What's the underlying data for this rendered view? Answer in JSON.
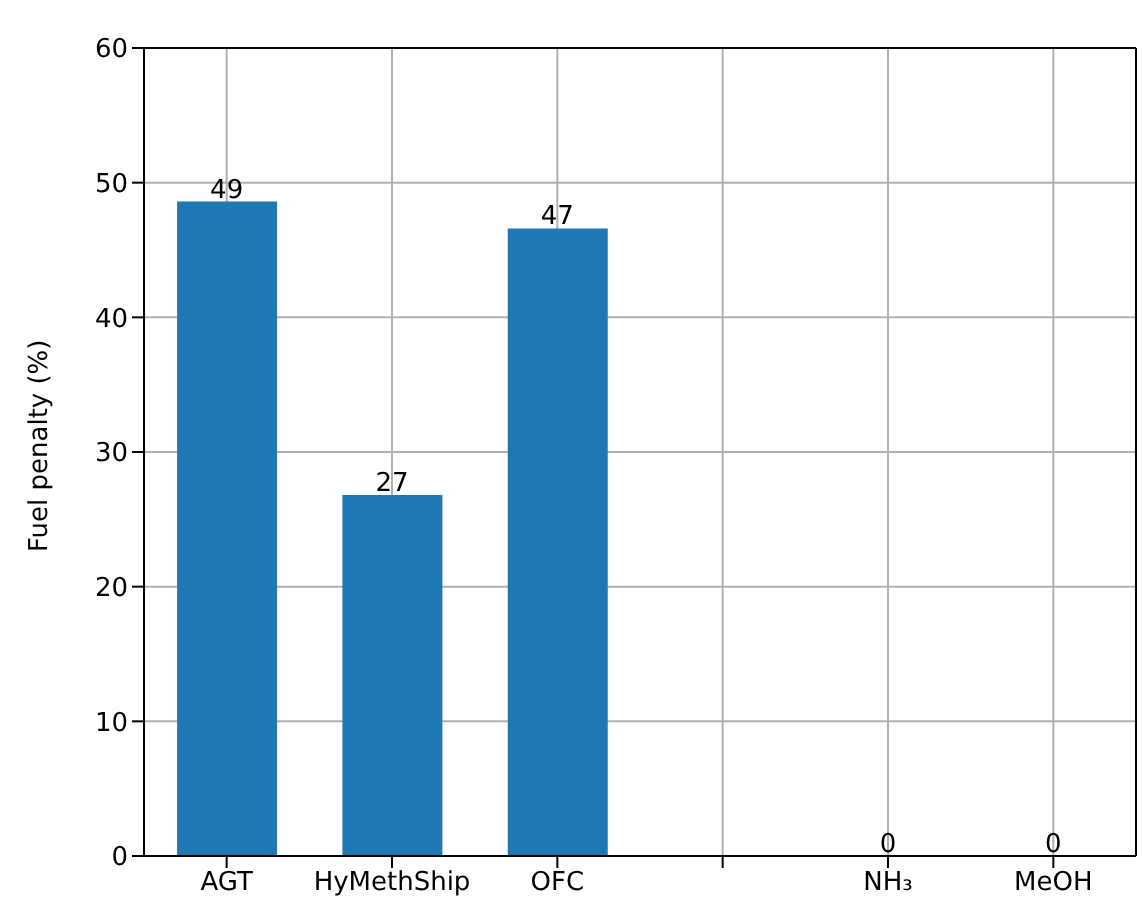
{
  "chart_data": {
    "type": "bar",
    "ylabel": "Fuel penalty (%)",
    "categories": [
      "AGT",
      "HyMethShip",
      "OFC",
      null,
      "NH₃",
      "MeOH"
    ],
    "values": [
      48.6,
      26.8,
      46.6,
      null,
      0,
      0
    ],
    "value_labels": [
      "49",
      "27",
      "47",
      null,
      "0",
      "0"
    ],
    "color": "#1f77b4",
    "ylim": [
      0,
      60
    ],
    "yticks": [
      0,
      10,
      20,
      30,
      40,
      50,
      60
    ],
    "grid": true
  }
}
